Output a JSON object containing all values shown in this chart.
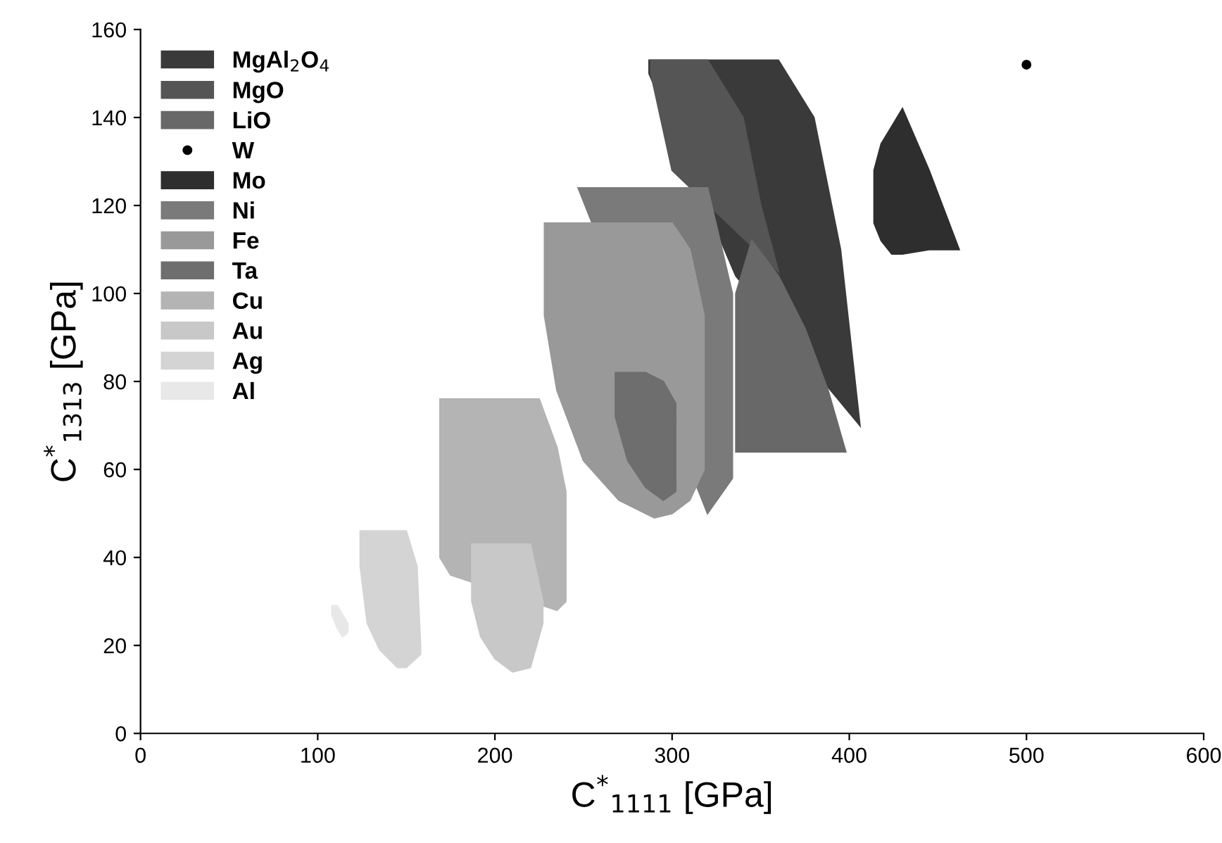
{
  "chart_data": {
    "type": "area",
    "xlabel": "C$^{*}$$_{1111}$ [GPa]",
    "ylabel": "C$^{*}$$_{1313}$ [GPa]",
    "xlim": [
      0,
      600
    ],
    "ylim": [
      0,
      160
    ],
    "xticks": [
      0,
      100,
      200,
      300,
      400,
      500,
      600
    ],
    "yticks": [
      0,
      20,
      40,
      60,
      80,
      100,
      120,
      140,
      160
    ],
    "grid": false,
    "legend": "top left",
    "series": [
      {
        "name": "MgAl$_{2}$O$_{4}$",
        "color": "#3a3a3a",
        "x": [
          287,
          300,
          320,
          340,
          360,
          380,
          395,
          406,
          336,
          287
        ],
        "values": [
          153,
          153,
          153,
          153,
          153,
          140,
          110,
          70,
          104,
          150
        ]
      },
      {
        "name": "MgO",
        "color": "#555555",
        "x": [
          288,
          300,
          320,
          340,
          350,
          360,
          300,
          288
        ],
        "values": [
          153,
          153,
          153,
          140,
          120,
          105,
          128,
          150
        ]
      },
      {
        "name": "LiO",
        "color": "#686868",
        "x": [
          336,
          345,
          360,
          375,
          388,
          398,
          336
        ],
        "values": [
          100,
          112,
          104,
          92,
          78,
          64,
          64
        ]
      },
      {
        "name": "W",
        "color": "#000000",
        "type": "scatter",
        "marker": "circle",
        "x": [
          500
        ],
        "values": [
          152
        ]
      },
      {
        "name": "Mo",
        "color": "#2e2e2e",
        "x": [
          414,
          418,
          424,
          430,
          445,
          462,
          445,
          430,
          424,
          418,
          414
        ],
        "values": [
          128,
          134,
          138,
          142,
          128,
          110,
          110,
          109,
          109,
          112,
          116
        ]
      },
      {
        "name": "Ni",
        "color": "#7a7a7a",
        "x": [
          247,
          255,
          270,
          290,
          310,
          320,
          334,
          334,
          320
        ],
        "values": [
          124,
          124,
          124,
          124,
          124,
          124,
          100,
          58,
          50
        ]
      },
      {
        "name": "Fe",
        "color": "#999999",
        "x": [
          228,
          250,
          270,
          290,
          300,
          310,
          318,
          318,
          310,
          300,
          290,
          270,
          250,
          235,
          228
        ],
        "values": [
          116,
          116,
          116,
          116,
          116,
          110,
          95,
          60,
          53,
          50,
          49,
          53,
          62,
          78,
          95
        ]
      },
      {
        "name": "Ta",
        "color": "#6e6e6e",
        "x": [
          268,
          285,
          295,
          302,
          302,
          295,
          285,
          275,
          268
        ],
        "values": [
          82,
          82,
          80,
          75,
          55,
          53,
          56,
          62,
          72
        ]
      },
      {
        "name": "Cu",
        "color": "#b4b4b4",
        "x": [
          169,
          225,
          235,
          240,
          240,
          235,
          175,
          169
        ],
        "values": [
          76,
          76,
          65,
          55,
          30,
          28,
          36,
          40
        ]
      },
      {
        "name": "Au",
        "color": "#c8c8c8",
        "x": [
          187,
          220,
          227,
          227,
          220,
          210,
          200,
          192,
          187
        ],
        "values": [
          43,
          43,
          30,
          25,
          15,
          14,
          17,
          22,
          30
        ]
      },
      {
        "name": "Ag",
        "color": "#d4d4d4",
        "x": [
          124,
          150,
          156,
          158,
          158,
          150,
          145,
          135,
          128,
          124
        ],
        "values": [
          46,
          46,
          38,
          20,
          18,
          15,
          15,
          19,
          25,
          38
        ]
      },
      {
        "name": "Al",
        "color": "#e8e8e8",
        "x": [
          108,
          111,
          114,
          117,
          117,
          114,
          111,
          108
        ],
        "values": [
          29,
          29,
          27,
          25,
          23,
          22,
          24,
          27
        ]
      }
    ]
  }
}
